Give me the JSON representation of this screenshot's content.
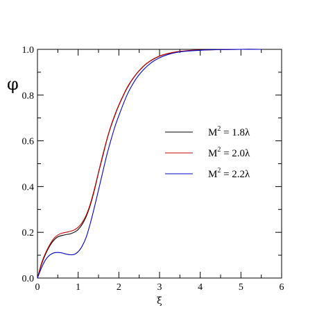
{
  "chart_data": {
    "type": "line",
    "title": "",
    "xlabel": "ξ",
    "ylabel": "φ",
    "xlim": [
      0,
      6
    ],
    "ylim": [
      0,
      1
    ],
    "x_ticks": [
      "0",
      "1",
      "2",
      "3",
      "4",
      "5",
      "6"
    ],
    "y_ticks": [
      "0.0",
      "0.2",
      "0.4",
      "0.6",
      "0.8",
      "1.0"
    ],
    "grid": false,
    "legend_position": "right-middle",
    "series": [
      {
        "name": "M² = 1.8λ",
        "label_base": "M",
        "label_sup": "2",
        "label_rest": " = 1.8λ",
        "color": "#000000",
        "x": [
          0,
          0.1,
          0.2,
          0.3,
          0.4,
          0.5,
          0.6,
          0.7,
          0.8,
          0.9,
          1.0,
          1.1,
          1.2,
          1.3,
          1.4,
          1.5,
          1.6,
          1.7,
          1.8,
          1.9,
          2.0,
          2.2,
          2.4,
          2.6,
          2.8,
          3.0,
          3.2,
          3.4,
          3.6,
          3.8,
          4.0,
          4.2,
          4.5,
          5.0,
          5.5
        ],
        "y": [
          0,
          0.06,
          0.105,
          0.14,
          0.165,
          0.18,
          0.186,
          0.19,
          0.193,
          0.2,
          0.212,
          0.235,
          0.27,
          0.32,
          0.385,
          0.46,
          0.53,
          0.6,
          0.66,
          0.71,
          0.755,
          0.83,
          0.885,
          0.925,
          0.952,
          0.97,
          0.981,
          0.988,
          0.992,
          0.995,
          0.997,
          0.998,
          0.999,
          1.0,
          1.0
        ]
      },
      {
        "name": "M² = 2.0λ",
        "label_base": "M",
        "label_sup": "2",
        "label_rest": " = 2.0λ",
        "color": "#cc0000",
        "x": [
          0,
          0.1,
          0.2,
          0.3,
          0.4,
          0.5,
          0.6,
          0.7,
          0.8,
          0.9,
          1.0,
          1.1,
          1.2,
          1.3,
          1.4,
          1.5,
          1.6,
          1.7,
          1.8,
          1.9,
          2.0,
          2.2,
          2.4,
          2.6,
          2.8,
          3.0,
          3.2,
          3.4,
          3.6,
          3.8,
          4.0,
          4.2,
          4.5,
          5.0,
          5.5
        ],
        "y": [
          0,
          0.065,
          0.11,
          0.145,
          0.172,
          0.188,
          0.196,
          0.2,
          0.204,
          0.21,
          0.222,
          0.243,
          0.276,
          0.325,
          0.39,
          0.463,
          0.535,
          0.603,
          0.663,
          0.713,
          0.757,
          0.832,
          0.886,
          0.926,
          0.953,
          0.971,
          0.982,
          0.989,
          0.993,
          0.996,
          0.997,
          0.998,
          0.999,
          1.0,
          1.0
        ]
      },
      {
        "name": "M² = 2.2λ",
        "label_base": "M",
        "label_sup": "2",
        "label_rest": " = 2.2λ",
        "color": "#0000cc",
        "x": [
          0,
          0.1,
          0.2,
          0.3,
          0.4,
          0.5,
          0.6,
          0.7,
          0.8,
          0.9,
          1.0,
          1.1,
          1.2,
          1.3,
          1.4,
          1.5,
          1.6,
          1.7,
          1.8,
          1.9,
          2.0,
          2.2,
          2.4,
          2.6,
          2.8,
          3.0,
          3.2,
          3.4,
          3.6,
          3.8,
          4.0,
          4.2,
          4.5,
          5.0,
          5.5
        ],
        "y": [
          0,
          0.045,
          0.08,
          0.1,
          0.11,
          0.112,
          0.11,
          0.105,
          0.102,
          0.103,
          0.115,
          0.14,
          0.18,
          0.24,
          0.31,
          0.385,
          0.46,
          0.535,
          0.6,
          0.66,
          0.71,
          0.8,
          0.865,
          0.91,
          0.942,
          0.963,
          0.977,
          0.986,
          0.991,
          0.994,
          0.996,
          0.998,
          0.999,
          1.0,
          1.0
        ]
      }
    ]
  }
}
